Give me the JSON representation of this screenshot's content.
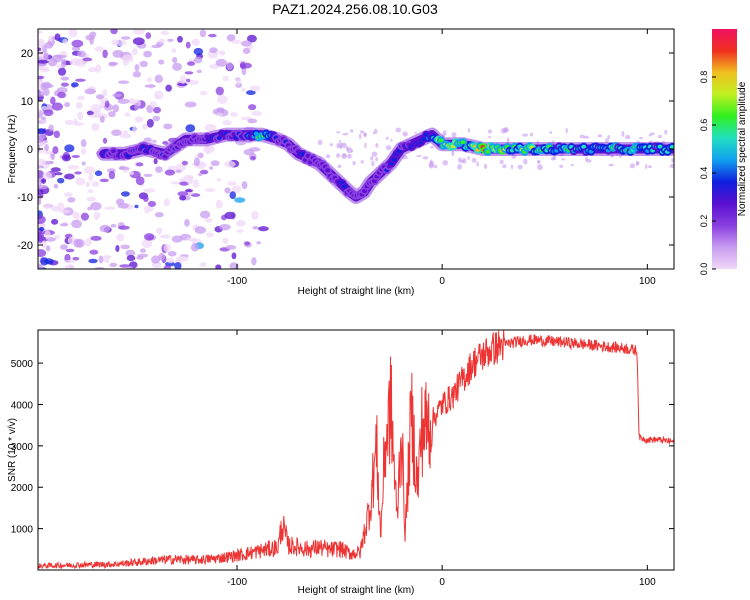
{
  "title": "PAZ1.2024.256.08.10.G03",
  "colors": {
    "snr_line": "#ee3333",
    "colormap": [
      "#f0d8f8",
      "#c89cf0",
      "#8a3ee0",
      "#5a10d0",
      "#1020e0",
      "#10a0f0",
      "#20e0c0",
      "#30f020",
      "#c0f020",
      "#f0c020",
      "#f03020",
      "#f01060"
    ]
  },
  "chart_data": [
    {
      "type": "heatmap",
      "title": "PAZ1.2024.256.08.10.G03",
      "xlabel": "Height of straight line (km)",
      "ylabel": "Frequency (Hz)",
      "xlim": [
        -197,
        113
      ],
      "ylim": [
        -25,
        25
      ],
      "xticks": [
        -100,
        0,
        100
      ],
      "xtick_labels": [
        "-100",
        "0",
        "100"
      ],
      "yticks": [
        -20,
        -10,
        0,
        10,
        20
      ],
      "ytick_labels": [
        "-20",
        "-10",
        "0",
        "10",
        "20"
      ],
      "grid": false,
      "colorbar": {
        "label": "Normalized spectral amplitude",
        "range": [
          0,
          1
        ],
        "ticks": [
          0.0,
          0.2,
          0.4,
          0.6,
          0.8
        ],
        "tick_labels": [
          "0.0",
          "0.2",
          "0.4",
          "0.6",
          "0.8"
        ]
      },
      "ridge": {
        "x": [
          -165,
          -155,
          -145,
          -135,
          -125,
          -115,
          -105,
          -95,
          -88,
          -80,
          -75,
          -70,
          -65,
          -60,
          -55,
          -50,
          -45,
          -42,
          -38,
          -35,
          -30,
          -25,
          -20,
          -15,
          -10,
          -5,
          0,
          5,
          10,
          20,
          40,
          60,
          80,
          100,
          113
        ],
        "y": [
          -1,
          -1,
          0,
          -1,
          2,
          2,
          3,
          3,
          3,
          2,
          1,
          -1,
          -2,
          -3,
          -5,
          -7,
          -9,
          -10,
          -9,
          -7,
          -5,
          -3,
          0,
          1,
          2,
          3,
          1,
          1,
          1,
          0,
          0,
          0,
          0,
          0,
          0
        ],
        "amplitude": [
          0.35,
          0.3,
          0.35,
          0.3,
          0.3,
          0.35,
          0.35,
          0.4,
          0.65,
          0.35,
          0.3,
          0.35,
          0.3,
          0.3,
          0.3,
          0.35,
          0.3,
          0.3,
          0.3,
          0.3,
          0.3,
          0.35,
          0.35,
          0.35,
          0.4,
          0.5,
          0.8,
          0.75,
          0.6,
          0.85,
          0.7,
          0.55,
          0.55,
          0.6,
          0.55
        ]
      }
    },
    {
      "type": "line",
      "xlabel": "Height of straight line (km)",
      "ylabel": "SNR (10 * v/v)",
      "xlim": [
        -197,
        113
      ],
      "ylim": [
        0,
        5800
      ],
      "xticks": [
        -100,
        0,
        100
      ],
      "xtick_labels": [
        "-100",
        "0",
        "100"
      ],
      "yticks": [
        1000,
        2000,
        3000,
        4000,
        5000
      ],
      "ytick_labels": [
        "1000",
        "2000",
        "3000",
        "4000",
        "5000"
      ],
      "grid": false,
      "series": [
        {
          "x": [
            -197,
            -180,
            -160,
            -150,
            -140,
            -130,
            -120,
            -110,
            -100,
            -90,
            -80,
            -78,
            -75,
            -70,
            -65,
            -60,
            -55,
            -50,
            -45,
            -40,
            -35,
            -32,
            -30,
            -28,
            -25,
            -22,
            -20,
            -18,
            -15,
            -12,
            -10,
            -5,
            0,
            5,
            10,
            15,
            20,
            25,
            30,
            35,
            40,
            45,
            50,
            60,
            70,
            80,
            90,
            95,
            96,
            100,
            105,
            113
          ],
          "y": [
            100,
            120,
            140,
            180,
            230,
            260,
            240,
            280,
            350,
            450,
            550,
            1100,
            600,
            550,
            500,
            550,
            480,
            520,
            400,
            420,
            1600,
            3000,
            800,
            2900,
            4000,
            1200,
            3500,
            900,
            3800,
            2000,
            3400,
            3600,
            4000,
            4200,
            4600,
            5000,
            5200,
            5350,
            5450,
            5500,
            5550,
            5560,
            5540,
            5500,
            5450,
            5400,
            5350,
            5300,
            3200,
            3150,
            3150,
            3100
          ]
        }
      ]
    }
  ]
}
